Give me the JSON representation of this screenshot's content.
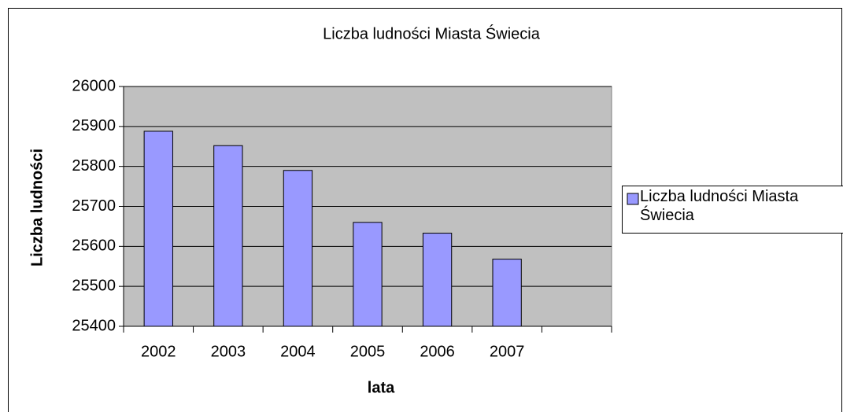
{
  "chart_data": {
    "type": "bar",
    "title": "Liczba ludności Miasta Świecia",
    "x_label": "lata",
    "y_label": "Liczba ludności",
    "categories": [
      "2002",
      "2003",
      "2004",
      "2005",
      "2006",
      "2007",
      null
    ],
    "series": [
      {
        "name": "Liczba ludności Miasta Świecia",
        "color": "#9999ff",
        "values": [
          25888,
          25852,
          25790,
          25660,
          25633,
          25568,
          null
        ]
      }
    ],
    "ylim": [
      25400,
      26000
    ],
    "yticks": [
      25400,
      25500,
      25600,
      25700,
      25800,
      25900,
      26000
    ],
    "grid": true,
    "plot_background": "#c0c0c0",
    "legend": "right"
  }
}
